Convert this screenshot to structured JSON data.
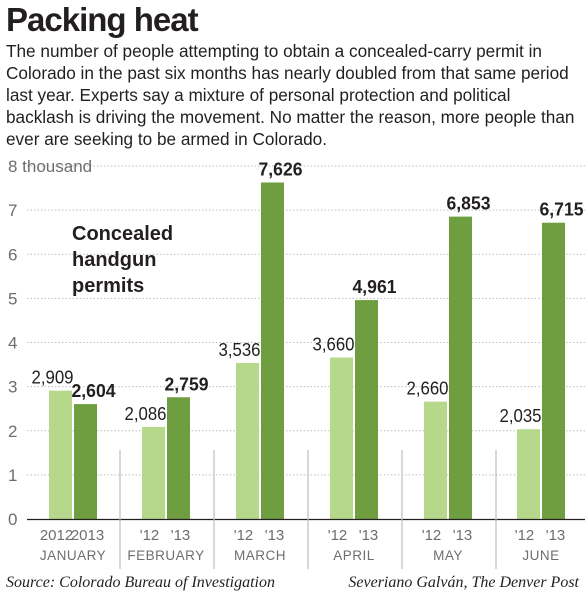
{
  "title": "Packing heat",
  "subtitle": "The number of people attempting to obtain a concealed-carry permit in Colorado in the past six months has nearly doubled from that same period last year. Experts say a mixture of personal protection and political backlash is driving the movement. No matter the reason, more people than ever are seeking to be armed in Colorado.",
  "source": "Source: Colorado Bureau of Investigation",
  "credit": "Severiano Galván, The Denver Post",
  "colors": {
    "series_2012": "#b5d88b",
    "series_2013": "#6e9e3f",
    "gridline": "#bcbec0",
    "text": "#231f20"
  },
  "chart_data": {
    "type": "bar",
    "annotation": [
      "Concealed",
      "handgun",
      "permits"
    ],
    "categories": [
      "JANUARY",
      "FEBRUARY",
      "MARCH",
      "APRIL",
      "MAY",
      "JUNE"
    ],
    "series_labels": {
      "first": [
        "2012",
        "'12",
        "'12",
        "'12",
        "'12",
        "'12"
      ],
      "second": [
        "2013",
        "'13",
        "'13",
        "'13",
        "'13",
        "'13"
      ]
    },
    "series": [
      {
        "values": [
          2909,
          2086,
          3536,
          3660,
          2660,
          2035
        ],
        "labels": [
          "2,909",
          "2,086",
          "3,536",
          "3,660",
          "2,660",
          "2,035"
        ]
      },
      {
        "values": [
          2604,
          2759,
          7626,
          4961,
          6853,
          6715
        ],
        "labels": [
          "2,604",
          "2,759",
          "7,626",
          "4,961",
          "6,853",
          "6,715"
        ]
      }
    ],
    "yticks": [
      "0",
      "1",
      "2",
      "3",
      "4",
      "5",
      "6",
      "7",
      "8 thousand"
    ],
    "ylim": [
      0,
      8000
    ],
    "grid": true
  }
}
